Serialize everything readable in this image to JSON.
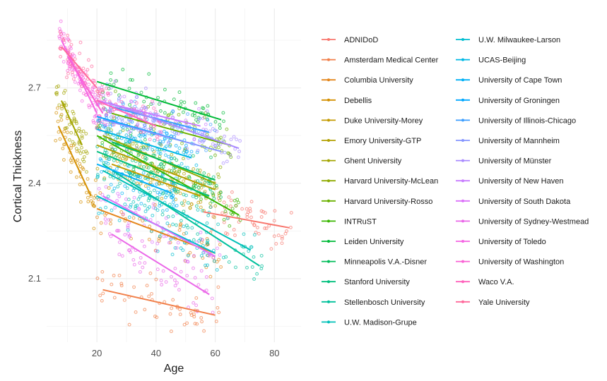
{
  "chart_data": {
    "type": "scatter",
    "title": "",
    "xlabel": "Age",
    "ylabel": "Cortical Thickness",
    "xlim": [
      3,
      89
    ],
    "ylim": [
      1.9,
      2.95
    ],
    "x_ticks": [
      20,
      40,
      60,
      80
    ],
    "y_ticks": [
      2.1,
      2.4,
      2.7
    ],
    "y_tick_labels": [
      "2.1",
      "2.4",
      "2.7"
    ],
    "grid": true,
    "legend_position": "right",
    "legend_columns": 2,
    "series": [
      {
        "name": "ADNIDoD",
        "color": "#F8766D",
        "fit": [
          [
            56,
            2.31
          ],
          [
            85,
            2.26
          ]
        ],
        "x_range": [
          56,
          86
        ],
        "spread": 0.07
      },
      {
        "name": "Amsterdam Medical Center",
        "color": "#F17F49",
        "fit": [
          [
            22,
            2.065
          ],
          [
            60,
            1.985
          ]
        ],
        "x_range": [
          20,
          62
        ],
        "spread": 0.08
      },
      {
        "name": "Columbia University",
        "color": "#E4861C",
        "fit": [
          [
            20,
            2.32
          ],
          [
            60,
            2.18
          ]
        ],
        "x_range": [
          20,
          62
        ],
        "spread": 0.07
      },
      {
        "name": "Debellis",
        "color": "#D48F00",
        "fit": [
          [
            7,
            2.58
          ],
          [
            18,
            2.36
          ]
        ],
        "x_range": [
          6,
          20
        ],
        "spread": 0.08
      },
      {
        "name": "Duke University-Morey",
        "color": "#C49A00",
        "fit": [
          [
            25,
            2.46
          ],
          [
            55,
            2.36
          ]
        ],
        "x_range": [
          22,
          58
        ],
        "spread": 0.07
      },
      {
        "name": "Emory University-GTP",
        "color": "#B3A000",
        "fit": [
          [
            20,
            2.52
          ],
          [
            60,
            2.38
          ]
        ],
        "x_range": [
          20,
          62
        ],
        "spread": 0.07
      },
      {
        "name": "Ghent University",
        "color": "#A3A500",
        "fit": [
          [
            8,
            2.66
          ],
          [
            15,
            2.52
          ]
        ],
        "x_range": [
          6,
          17
        ],
        "spread": 0.07
      },
      {
        "name": "Harvard University-McLean",
        "color": "#8FAA00",
        "fit": [
          [
            22,
            2.55
          ],
          [
            60,
            2.4
          ]
        ],
        "x_range": [
          20,
          62
        ],
        "spread": 0.07
      },
      {
        "name": "Harvard University-Rosso",
        "color": "#6AB100",
        "fit": [
          [
            25,
            2.62
          ],
          [
            65,
            2.52
          ]
        ],
        "x_range": [
          22,
          66
        ],
        "spread": 0.07
      },
      {
        "name": "INTRuST",
        "color": "#39B600",
        "fit": [
          [
            20,
            2.55
          ],
          [
            68,
            2.3
          ]
        ],
        "x_range": [
          20,
          70
        ],
        "spread": 0.07
      },
      {
        "name": "Leiden University",
        "color": "#00BA38",
        "fit": [
          [
            20,
            2.72
          ],
          [
            62,
            2.6
          ]
        ],
        "x_range": [
          20,
          64
        ],
        "spread": 0.06
      },
      {
        "name": "Minneapolis V.A.-Disner",
        "color": "#00BC59",
        "fit": [
          [
            25,
            2.53
          ],
          [
            60,
            2.41
          ]
        ],
        "x_range": [
          24,
          62
        ],
        "spread": 0.07
      },
      {
        "name": "Stanford University",
        "color": "#00BF7D",
        "fit": [
          [
            20,
            2.5
          ],
          [
            58,
            2.36
          ]
        ],
        "x_range": [
          20,
          60
        ],
        "spread": 0.07
      },
      {
        "name": "Stellenbosch University",
        "color": "#00C09C",
        "fit": [
          [
            22,
            2.46
          ],
          [
            75,
            2.14
          ]
        ],
        "x_range": [
          20,
          77
        ],
        "spread": 0.07
      },
      {
        "name": "U.W. Madison-Grupe",
        "color": "#00C0B8",
        "fit": [
          [
            22,
            2.44
          ],
          [
            72,
            2.19
          ]
        ],
        "x_range": [
          20,
          74
        ],
        "spread": 0.07
      },
      {
        "name": "U.W. Milwaukee-Larson",
        "color": "#00BDD0",
        "fit": [
          [
            20,
            2.36
          ],
          [
            60,
            2.18
          ]
        ],
        "x_range": [
          20,
          62
        ],
        "spread": 0.07
      },
      {
        "name": "UCAS-Beijing",
        "color": "#00B8E5",
        "fit": [
          [
            20,
            2.57
          ],
          [
            52,
            2.48
          ]
        ],
        "x_range": [
          20,
          54
        ],
        "spread": 0.06
      },
      {
        "name": "University of Cape Town",
        "color": "#00B0F6",
        "fit": [
          [
            20,
            2.46
          ],
          [
            45,
            2.37
          ]
        ],
        "x_range": [
          20,
          47
        ],
        "spread": 0.07
      },
      {
        "name": "University of Groningen",
        "color": "#00A7FF",
        "fit": [
          [
            20,
            2.61
          ],
          [
            50,
            2.53
          ]
        ],
        "x_range": [
          20,
          52
        ],
        "spread": 0.06
      },
      {
        "name": "University of Illinois-Chicago",
        "color": "#3D9EFF",
        "fit": [
          [
            25,
            2.64
          ],
          [
            58,
            2.56
          ]
        ],
        "x_range": [
          23,
          60
        ],
        "spread": 0.06
      },
      {
        "name": "University of Mannheim",
        "color": "#8494FF",
        "fit": [
          [
            22,
            2.6
          ],
          [
            62,
            2.5
          ]
        ],
        "x_range": [
          20,
          64
        ],
        "spread": 0.06
      },
      {
        "name": "University of Münster",
        "color": "#A98AFF",
        "fit": [
          [
            25,
            2.65
          ],
          [
            68,
            2.51
          ]
        ],
        "x_range": [
          23,
          70
        ],
        "spread": 0.06
      },
      {
        "name": "University of New Haven",
        "color": "#C77CFF",
        "fit": [
          [
            20,
            2.66
          ],
          [
            55,
            2.58
          ]
        ],
        "x_range": [
          20,
          57
        ],
        "spread": 0.06
      },
      {
        "name": "University of South Dakota",
        "color": "#DC71FA",
        "fit": [
          [
            22,
            2.36
          ],
          [
            60,
            2.17
          ]
        ],
        "x_range": [
          20,
          62
        ],
        "spread": 0.07
      },
      {
        "name": "University of Sydney-Westmead",
        "color": "#EA67E8",
        "fit": [
          [
            25,
            2.24
          ],
          [
            58,
            2.05
          ]
        ],
        "x_range": [
          22,
          60
        ],
        "spread": 0.07
      },
      {
        "name": "University of Toledo",
        "color": "#F564E3",
        "fit": [
          [
            8,
            2.85
          ],
          [
            20,
            2.62
          ]
        ],
        "x_range": [
          7,
          22
        ],
        "spread": 0.06
      },
      {
        "name": "University of Washington",
        "color": "#FA62D4",
        "fit": [
          [
            10,
            2.8
          ],
          [
            22,
            2.62
          ]
        ],
        "x_range": [
          8,
          24
        ],
        "spread": 0.06
      },
      {
        "name": "Waco V.A.",
        "color": "#FF62BC",
        "fit": [
          [
            20,
            2.66
          ],
          [
            40,
            2.58
          ]
        ],
        "x_range": [
          20,
          42
        ],
        "spread": 0.06
      },
      {
        "name": "Yale University",
        "color": "#FF699C",
        "fit": [
          [
            8,
            2.83
          ],
          [
            20,
            2.7
          ]
        ],
        "x_range": [
          7,
          22
        ],
        "spread": 0.06
      }
    ]
  }
}
